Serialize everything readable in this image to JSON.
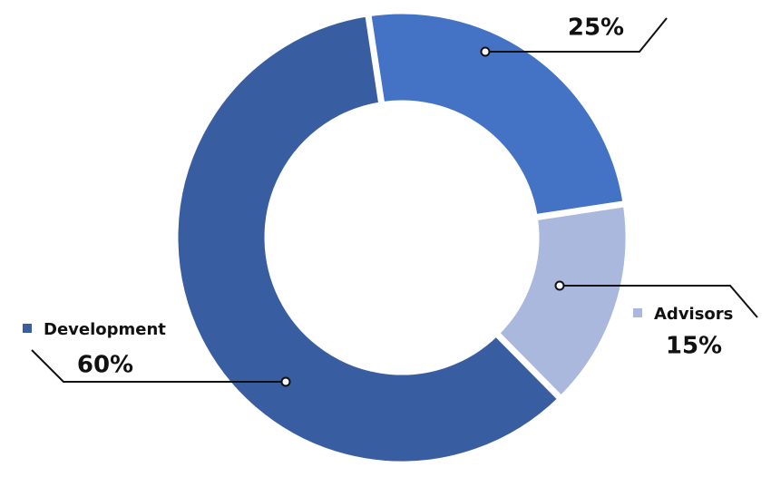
{
  "chart_data": {
    "type": "donut",
    "categories": [
      null,
      "Advisors",
      "Development"
    ],
    "values": [
      25,
      15,
      60
    ],
    "value_labels": [
      "25%",
      "15%",
      "60%"
    ],
    "colors": [
      "#4472c4",
      "#a9b8dc",
      "#385da0"
    ]
  }
}
